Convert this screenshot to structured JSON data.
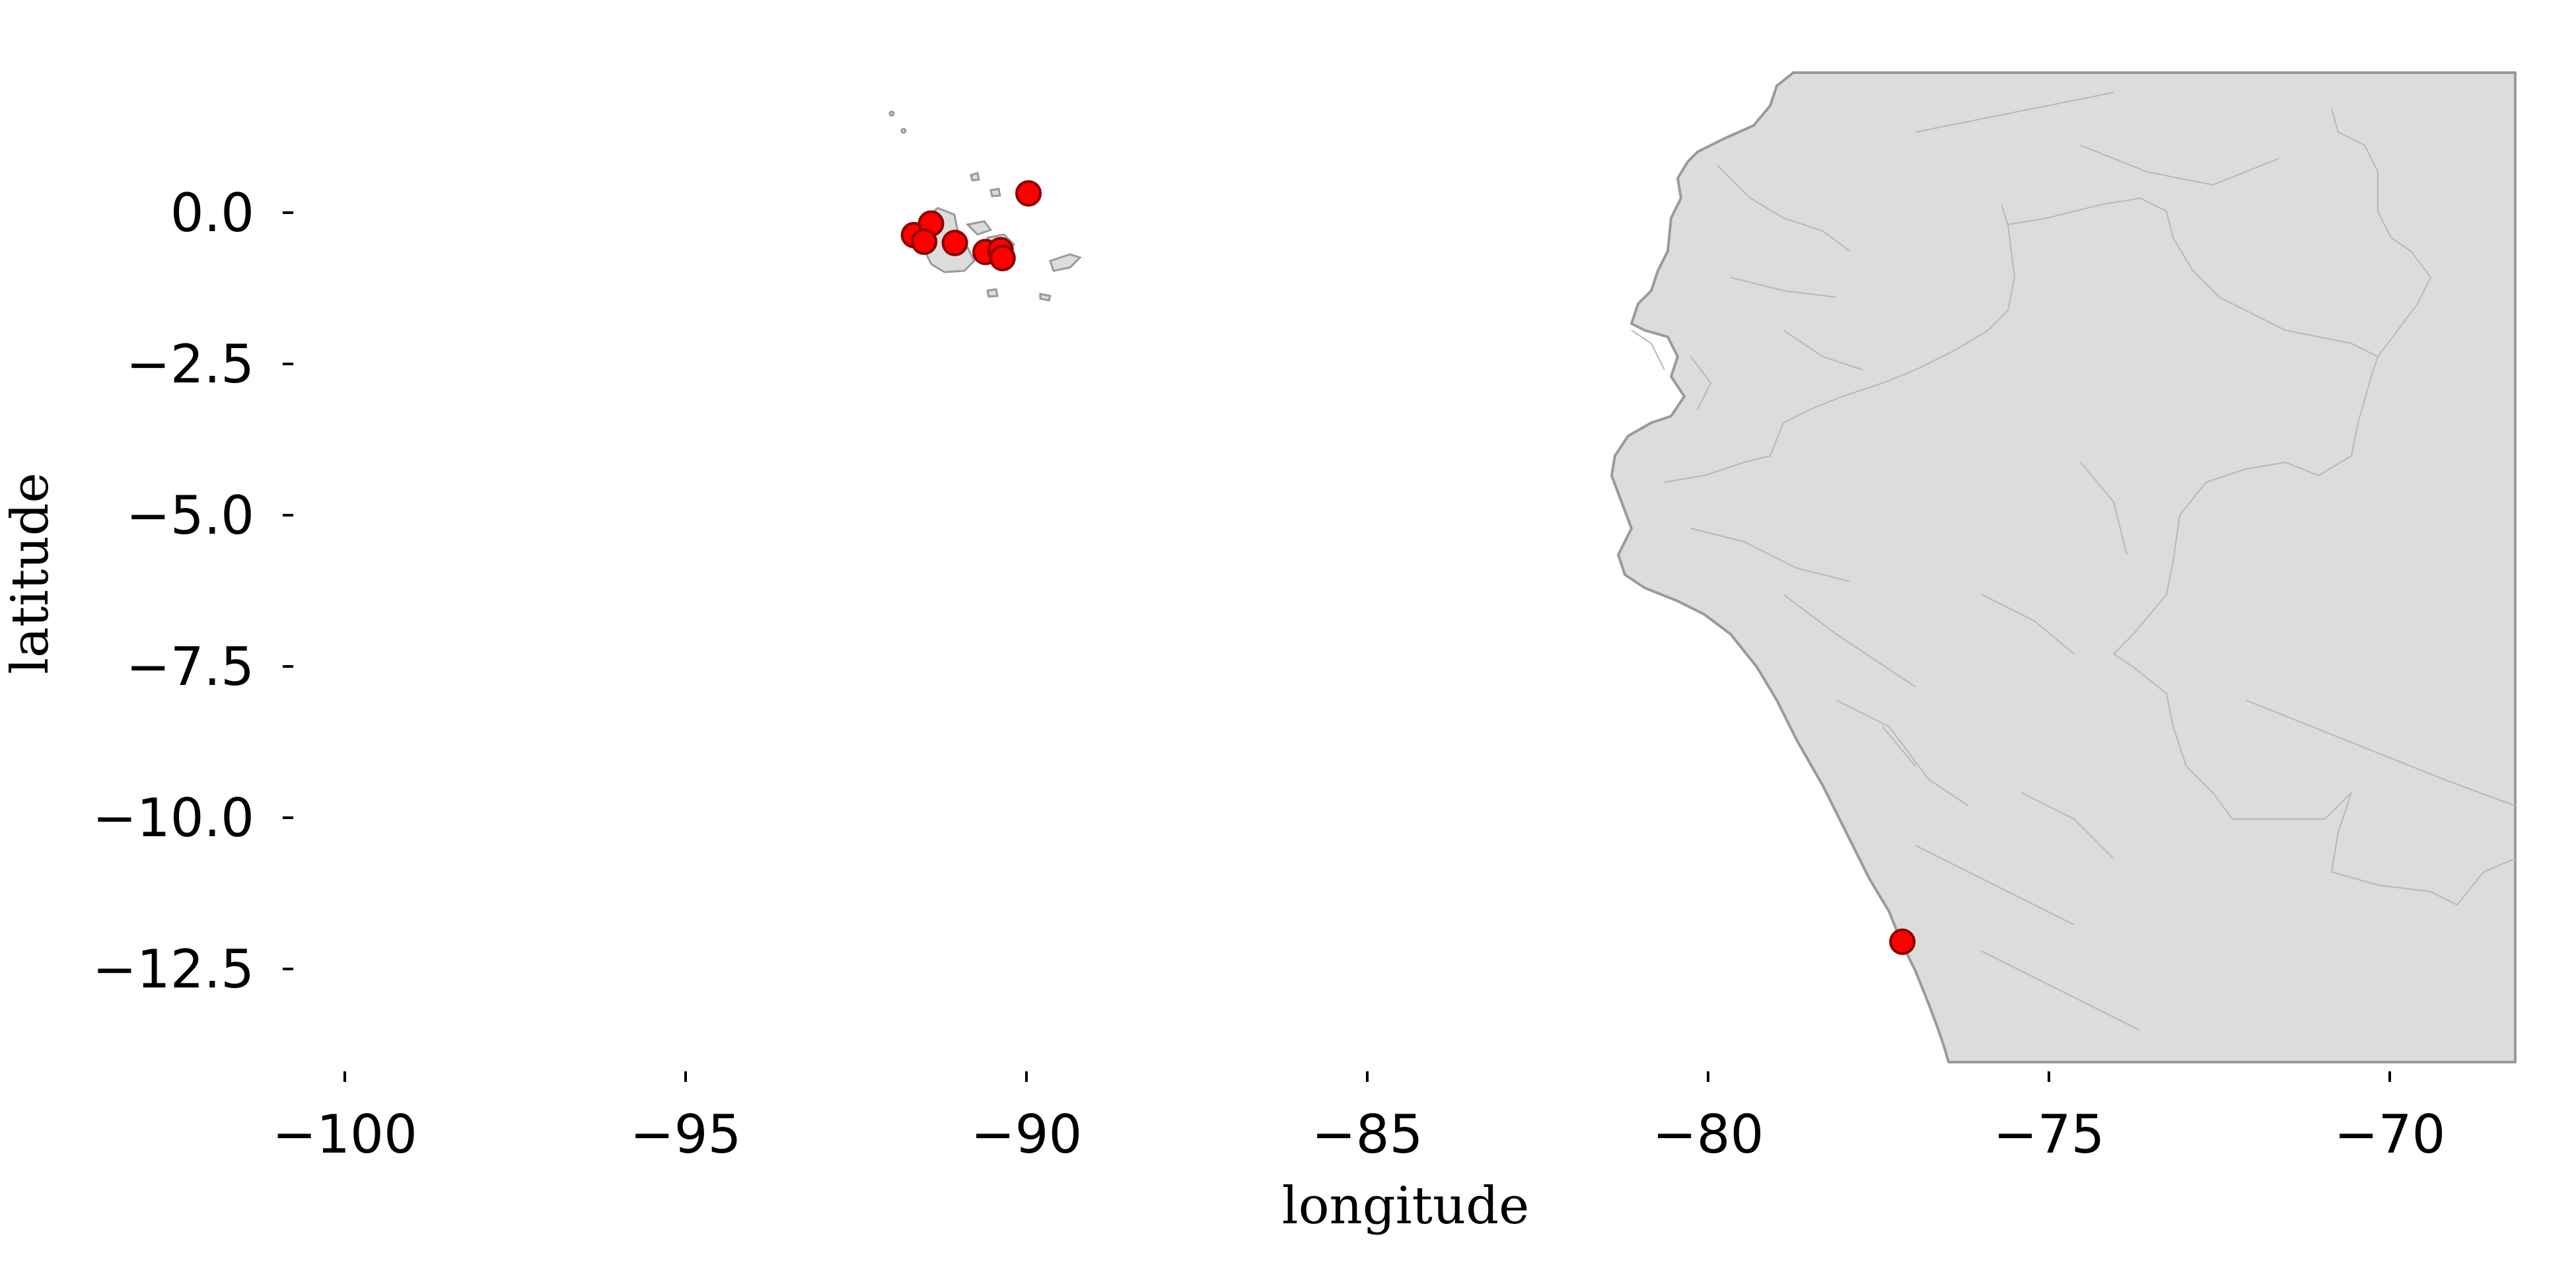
{
  "map": {
    "xlabel": "longitude",
    "ylabel": "latitude",
    "xlim": [
      -101,
      -68
    ],
    "ylim": [
      -14,
      2.3
    ],
    "xticks": [
      -100,
      -95,
      -90,
      -85,
      -80,
      -75,
      -70
    ],
    "xtick_labels": [
      "−100",
      "−95",
      "−90",
      "−85",
      "−80",
      "−75",
      "−70"
    ],
    "yticks": [
      0.0,
      -2.5,
      -5.0,
      -7.5,
      -10.0,
      -12.5
    ],
    "ytick_labels": [
      "0.0",
      "−2.5",
      "−5.0",
      "−7.5",
      "−10.0",
      "−12.5"
    ],
    "land_color": "#dcdcdc",
    "border_color": "#9a9a9a",
    "point_color": "#ff0000",
    "point_edge_color": "#8b0000",
    "grid": false,
    "points": [
      {
        "lon": -89.97,
        "lat": 0.32
      },
      {
        "lon": -91.65,
        "lat": -0.37
      },
      {
        "lon": -91.4,
        "lat": -0.18
      },
      {
        "lon": -91.5,
        "lat": -0.48
      },
      {
        "lon": -91.05,
        "lat": -0.5
      },
      {
        "lon": -90.6,
        "lat": -0.65
      },
      {
        "lon": -90.38,
        "lat": -0.62
      },
      {
        "lon": -90.35,
        "lat": -0.75
      },
      {
        "lon": -77.15,
        "lat": -12.05
      }
    ]
  }
}
